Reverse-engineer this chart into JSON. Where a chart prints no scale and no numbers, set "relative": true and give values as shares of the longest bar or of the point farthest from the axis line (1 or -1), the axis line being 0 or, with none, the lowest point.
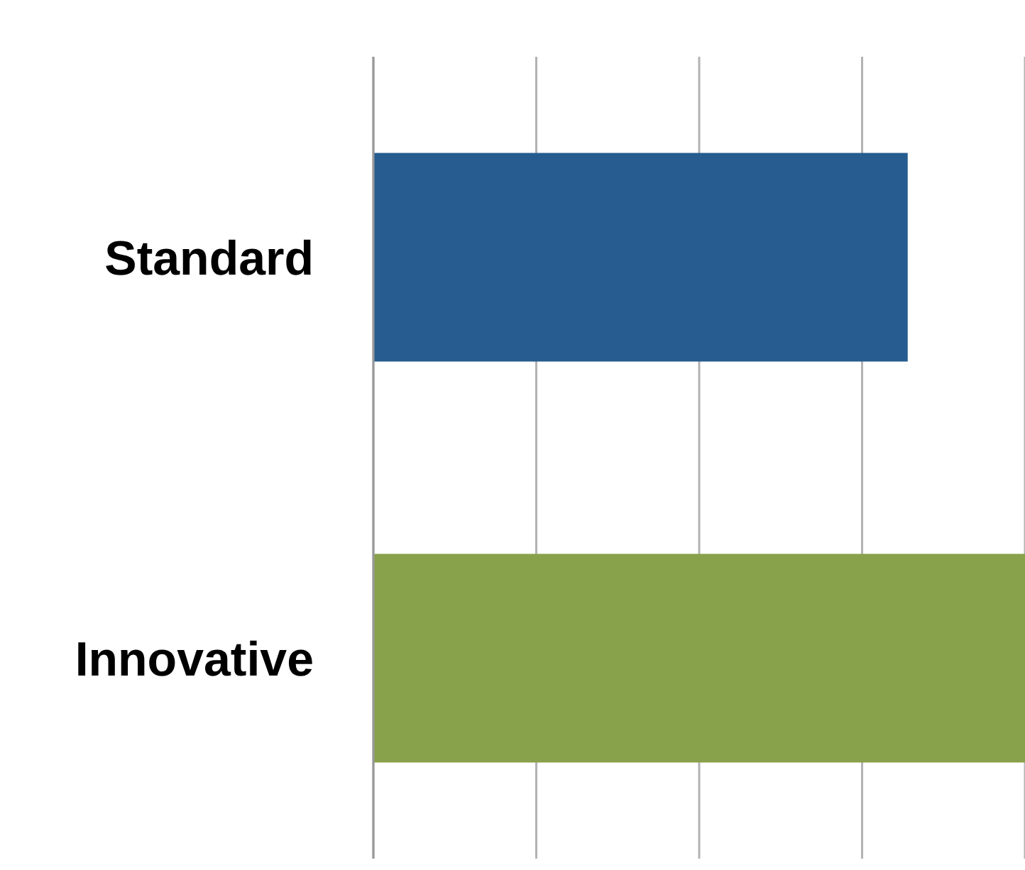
{
  "chart_data": {
    "type": "bar",
    "orientation": "horizontal",
    "relative": true,
    "categories": [
      "Standard",
      "Innovative"
    ],
    "values": [
      0.82,
      1
    ],
    "colors": [
      "#265c8f",
      "#88a14b"
    ],
    "grid": "x"
  }
}
